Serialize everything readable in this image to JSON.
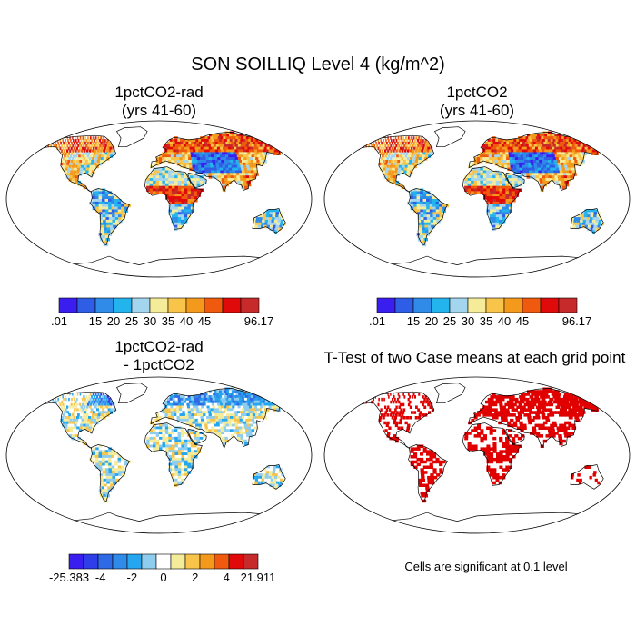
{
  "figure": {
    "title": "SON SOILLIQ Level 4 (kg/m^2)"
  },
  "panels": [
    {
      "title_line1": "1pctCO2-rad",
      "title_line2": "(yrs 41-60)",
      "scheme": "absolute"
    },
    {
      "title_line1": "1pctCO2",
      "title_line2": "(yrs 41-60)",
      "scheme": "absolute"
    },
    {
      "title_line1": "1pctCO2-rad",
      "title_line2": "- 1pctCO2",
      "scheme": "difference"
    },
    {
      "title_line1": "T-Test of two Case means at each grid point",
      "title_line2": "",
      "scheme": "significance"
    }
  ],
  "colorbars": {
    "absolute": {
      "colors": [
        "#3a1ef0",
        "#2f5ee6",
        "#2f8ae8",
        "#23b4ee",
        "#a3d5ee",
        "#f5ec9a",
        "#f8c44a",
        "#f39a1c",
        "#ef5a0e",
        "#e10a0a",
        "#c62a2a"
      ],
      "labels": [
        ".01",
        "15",
        "20",
        "25",
        "30",
        "35",
        "40",
        "45",
        "96.17"
      ]
    },
    "difference": {
      "colors": [
        "#3a1ef0",
        "#2f3ee8",
        "#2f6ae6",
        "#2f8ae8",
        "#25a6ee",
        "#8fcdee",
        "#ffffff",
        "#f5ec9a",
        "#f8c44a",
        "#f39a1c",
        "#ef5a0e",
        "#e10a0a",
        "#c62a2a"
      ],
      "labels": [
        "-25.383",
        "-4",
        "-2",
        "0",
        "2",
        "4",
        "21.911"
      ]
    }
  },
  "significance_note": "Cells are significant at 0.1 level",
  "significance_color": "#e00000"
}
